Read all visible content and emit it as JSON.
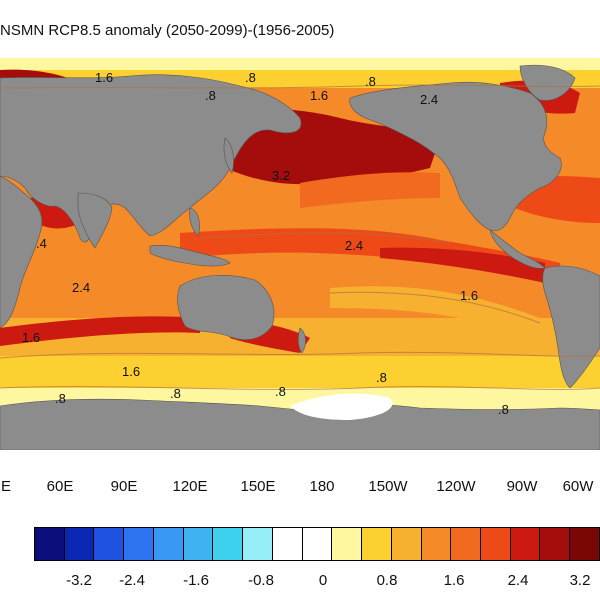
{
  "title": "NSMN RCP8.5 anomaly (2050-2099)-(1956-2005)",
  "longitude_labels": [
    "E",
    "60E",
    "90E",
    "120E",
    "150E",
    "180",
    "150W",
    "120W",
    "90W",
    "60W"
  ],
  "colorbar": {
    "colors": [
      "#0b0e7a",
      "#0a28b4",
      "#1f52e0",
      "#2d74f0",
      "#3a98f5",
      "#3fb3f2",
      "#3ed0ee",
      "#96eef8",
      "#ffffff",
      "#ffffff",
      "#fff6a0",
      "#fbd030",
      "#f8b030",
      "#f58a28",
      "#f26a20",
      "#ee4a18",
      "#cc1a10",
      "#a50d0d",
      "#7a0606"
    ],
    "tick_labels": [
      "-3.2",
      "-2.4",
      "-1.6",
      "-0.8",
      "0",
      "0.8",
      "1.6",
      "2.4",
      "3.2"
    ]
  },
  "contour_labels": [
    ".8",
    "1.6",
    ".8",
    "1.6",
    ".8",
    "2.4",
    "3.2",
    "2.4",
    "1.6",
    "2.4",
    "1.6",
    "1.6",
    ".8",
    ".8",
    ".8",
    ".8",
    ".8",
    ".4"
  ]
}
